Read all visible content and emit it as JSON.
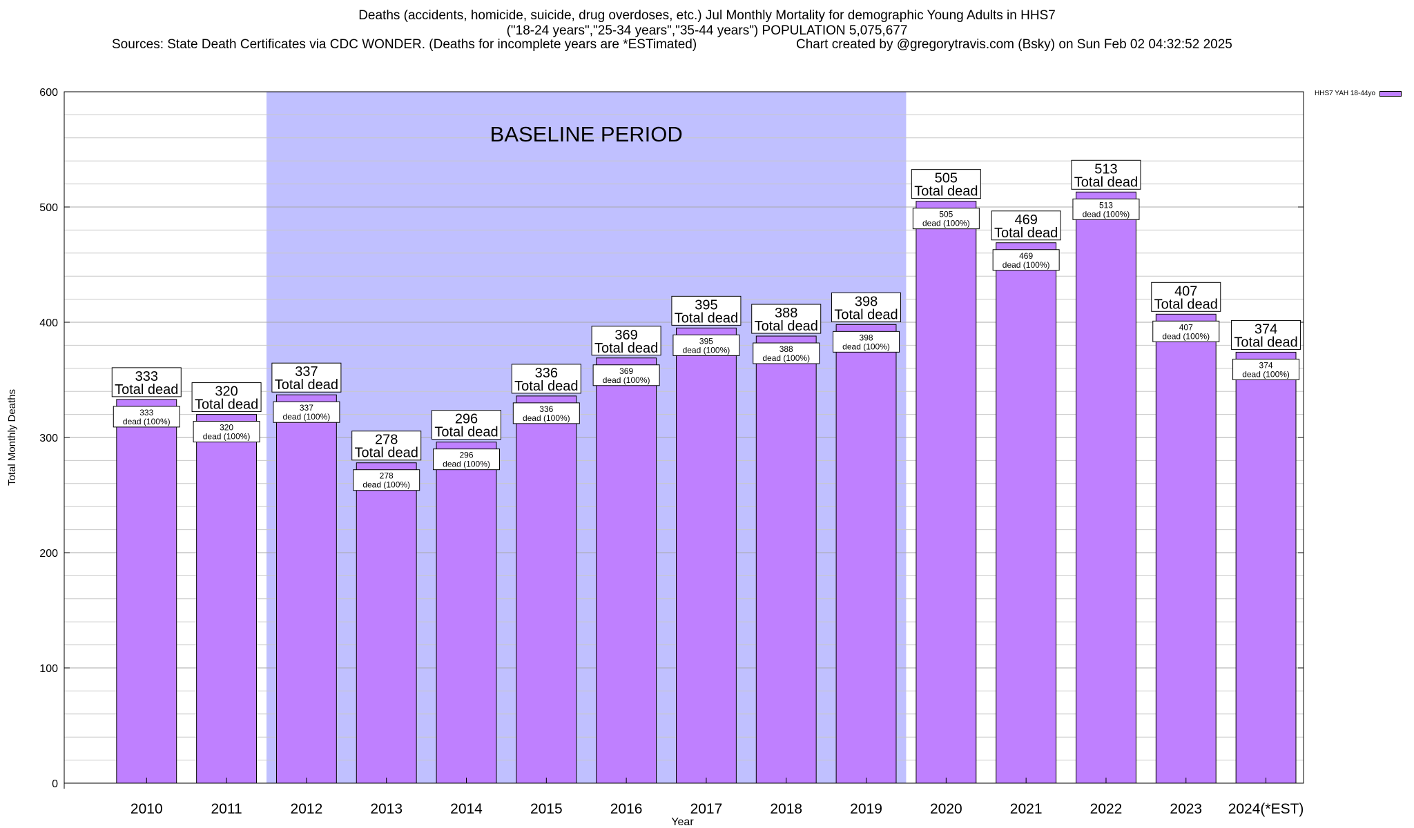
{
  "title": {
    "line1": "Deaths (accidents, homicide, suicide, drug overdoses, etc.) Jul Monthly Mortality for demographic Young Adults in HHS7",
    "line2": "(\"18-24 years\",\"25-34 years\",\"35-44 years\") POPULATION 5,075,677",
    "sources": "Sources: State Death Certificates via CDC WONDER. (Deaths for incomplete years are *ESTimated)",
    "credit": "Chart created by @gregorytravis.com (Bsky) on Sun Feb 02 04:32:52 2025"
  },
  "legend": {
    "label": "HHS7 YAH 18-44yo",
    "color": "#bf80ff"
  },
  "colors": {
    "bar": "#bf80ff",
    "baseline": "#c0c0ff",
    "grid": "#c8c8c8"
  },
  "chart_data": {
    "type": "bar",
    "xlabel": "Year",
    "ylabel": "Total Monthly Deaths",
    "ylim": [
      0,
      600
    ],
    "yticks": [
      0,
      100,
      200,
      300,
      400,
      500,
      600
    ],
    "grid": true,
    "legend_position": "top-right",
    "categories": [
      "2010",
      "2011",
      "2012",
      "2013",
      "2014",
      "2015",
      "2016",
      "2017",
      "2018",
      "2019",
      "2020",
      "2021",
      "2022",
      "2023",
      "2024(*EST)"
    ],
    "series": [
      {
        "name": "HHS7 YAH 18-44yo",
        "values": [
          333,
          320,
          337,
          278,
          296,
          336,
          369,
          395,
          388,
          398,
          505,
          469,
          513,
          407,
          374
        ]
      }
    ],
    "label_total_suffix": "Total dead",
    "label_inner_suffix": "dead (100%)",
    "baseline": {
      "label": "BASELINE PERIOD",
      "start": "2012",
      "end": "2019"
    }
  }
}
